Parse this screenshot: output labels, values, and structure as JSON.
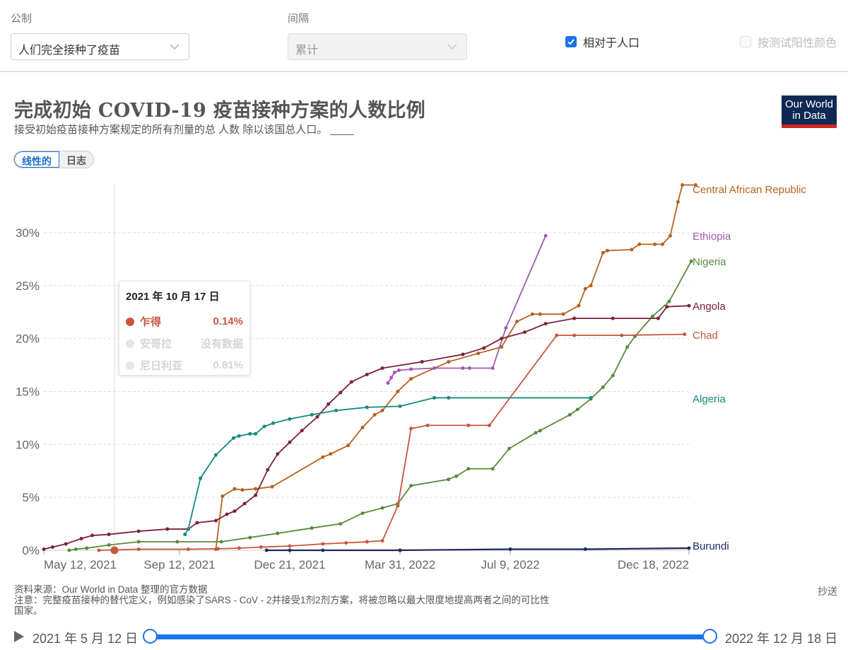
{
  "controls": {
    "metric_label": "公制",
    "metric_value": "人们完全接种了疫苗",
    "interval_label": "间隔",
    "interval_value": "累计",
    "relative_to_population_label": "相对于人口",
    "relative_to_population_checked": true,
    "color_by_test_positivity_label": "按测试阳性颜色",
    "color_by_test_positivity_checked": false
  },
  "header": {
    "title": "完成初始 COVID-19 疫苗接种方案的人数比例",
    "subtitle": "接受初始疫苗接种方案规定的所有剂量的总 人数 除以该国总人口。 ____",
    "logo_line1": "Our World",
    "logo_line2": "in Data"
  },
  "scale_toggle": {
    "linear": "线性的",
    "log": "日志",
    "active": "linear"
  },
  "tooltip": {
    "date": "2021 年 10 月 17 日",
    "rows": [
      {
        "name": "乍得",
        "value": "0.14%",
        "color": "#c8553d",
        "active": true
      },
      {
        "name": "安哥拉",
        "value": "没有数据",
        "color": "#e6e6e6",
        "active": false
      },
      {
        "name": "尼日利亚",
        "value": "0.81%",
        "color": "#e6e6e6",
        "active": false
      }
    ]
  },
  "footer": {
    "source": "资料来源：Our World in Data 整理的官方数据",
    "note_line1": "注意：完整疫苗接种的替代定义，例如感染了SARS - CoV - 2并接受1剂2剂方案，将被忽略以最大限度地提高两者之间的可比性",
    "note_line2": "国家。",
    "share": "抄送"
  },
  "timeline": {
    "start": "2021 年 5 月 12 日",
    "end": "2022 年 12 月 18 日"
  },
  "chart_data": {
    "type": "line",
    "title": "完成初始 COVID-19 疫苗接种方案的人数比例",
    "xlabel": "",
    "ylabel": "",
    "x_tick_labels": [
      "May 12, 2021",
      "Sep 12, 2021",
      "Dec 21, 2021",
      "Mar 31, 2022",
      "Jul 9, 2022",
      "Dec 18, 2022"
    ],
    "y_tick_labels": [
      "0%",
      "5%",
      "10%",
      "15%",
      "20%",
      "25%",
      "30%"
    ],
    "ylim": [
      0,
      35
    ],
    "grid": "horizontal dashed",
    "legend_position": "right (inline labels)",
    "hover_date": "2021-10-17",
    "series": [
      {
        "name": "Central African Republic",
        "color": "#b5621f",
        "points": [
          [
            "2021-10-15",
            0.1
          ],
          [
            "2021-10-21",
            5.1
          ],
          [
            "2021-11-01",
            5.8
          ],
          [
            "2021-11-08",
            5.7
          ],
          [
            "2021-11-20",
            5.8
          ],
          [
            "2021-12-05",
            6.0
          ],
          [
            "2022-01-20",
            8.8
          ],
          [
            "2022-01-27",
            9.1
          ],
          [
            "2022-02-12",
            9.9
          ],
          [
            "2022-02-25",
            11.6
          ],
          [
            "2022-03-08",
            12.8
          ],
          [
            "2022-03-15",
            13.2
          ],
          [
            "2022-03-29",
            15.0
          ],
          [
            "2022-04-10",
            16.2
          ],
          [
            "2022-05-14",
            17.8
          ],
          [
            "2022-06-10",
            18.6
          ],
          [
            "2022-07-01",
            19.2
          ],
          [
            "2022-07-15",
            21.6
          ],
          [
            "2022-07-29",
            22.3
          ],
          [
            "2022-08-05",
            22.3
          ],
          [
            "2022-08-26",
            22.3
          ],
          [
            "2022-09-09",
            23.1
          ],
          [
            "2022-09-15",
            24.7
          ],
          [
            "2022-09-20",
            25.0
          ],
          [
            "2022-10-01",
            28.1
          ],
          [
            "2022-10-05",
            28.3
          ],
          [
            "2022-10-27",
            28.4
          ],
          [
            "2022-11-03",
            28.9
          ],
          [
            "2022-11-17",
            28.9
          ],
          [
            "2022-11-24",
            28.9
          ],
          [
            "2022-12-01",
            29.7
          ],
          [
            "2022-12-08",
            32.9
          ],
          [
            "2022-12-12",
            34.5
          ],
          [
            "2022-12-24",
            34.5
          ]
        ]
      },
      {
        "name": "Ethiopia",
        "color": "#a05aad",
        "points": [
          [
            "2022-03-20",
            15.8
          ],
          [
            "2022-03-23",
            16.3
          ],
          [
            "2022-03-26",
            16.8
          ],
          [
            "2022-03-30",
            17.0
          ],
          [
            "2022-04-10",
            17.1
          ],
          [
            "2022-05-01",
            17.2
          ],
          [
            "2022-05-27",
            17.2
          ],
          [
            "2022-06-02",
            17.2
          ],
          [
            "2022-06-23",
            17.2
          ],
          [
            "2022-07-05",
            21.0
          ],
          [
            "2022-08-10",
            29.7
          ]
        ]
      },
      {
        "name": "Nigeria",
        "color": "#5a8a3c",
        "points": [
          [
            "2021-06-04",
            0.0
          ],
          [
            "2021-06-10",
            0.1
          ],
          [
            "2021-06-20",
            0.2
          ],
          [
            "2021-07-10",
            0.5
          ],
          [
            "2021-08-06",
            0.8
          ],
          [
            "2021-09-10",
            0.8
          ],
          [
            "2021-10-20",
            0.8
          ],
          [
            "2021-11-15",
            1.2
          ],
          [
            "2021-12-10",
            1.6
          ],
          [
            "2022-01-10",
            2.1
          ],
          [
            "2022-02-05",
            2.5
          ],
          [
            "2022-02-25",
            3.5
          ],
          [
            "2022-03-15",
            4.0
          ],
          [
            "2022-03-29",
            4.4
          ],
          [
            "2022-04-10",
            6.1
          ],
          [
            "2022-05-14",
            6.7
          ],
          [
            "2022-05-21",
            7.0
          ],
          [
            "2022-06-01",
            7.7
          ],
          [
            "2022-06-23",
            7.7
          ],
          [
            "2022-07-08",
            9.6
          ],
          [
            "2022-08-01",
            11.1
          ],
          [
            "2022-08-05",
            11.3
          ],
          [
            "2022-09-01",
            12.8
          ],
          [
            "2022-09-08",
            13.3
          ],
          [
            "2022-09-20",
            14.3
          ],
          [
            "2022-10-01",
            15.4
          ],
          [
            "2022-10-10",
            16.5
          ],
          [
            "2022-10-23",
            19.2
          ],
          [
            "2022-10-30",
            20.2
          ],
          [
            "2022-11-15",
            22.1
          ],
          [
            "2022-11-30",
            23.5
          ],
          [
            "2022-12-20",
            27.3
          ]
        ]
      },
      {
        "name": "Angola",
        "color": "#7c2238",
        "points": [
          [
            "2021-05-12",
            0.1
          ],
          [
            "2021-05-20",
            0.3
          ],
          [
            "2021-06-01",
            0.6
          ],
          [
            "2021-06-15",
            1.1
          ],
          [
            "2021-06-25",
            1.4
          ],
          [
            "2021-07-10",
            1.5
          ],
          [
            "2021-08-06",
            1.8
          ],
          [
            "2021-09-01",
            2.0
          ],
          [
            "2021-09-20",
            2.0
          ],
          [
            "2021-09-28",
            2.6
          ],
          [
            "2021-10-15",
            2.8
          ],
          [
            "2021-10-25",
            3.4
          ],
          [
            "2021-11-01",
            3.7
          ],
          [
            "2021-11-10",
            4.4
          ],
          [
            "2021-11-20",
            5.2
          ],
          [
            "2021-12-01",
            7.6
          ],
          [
            "2021-12-10",
            9.1
          ],
          [
            "2021-12-21",
            10.2
          ],
          [
            "2022-01-01",
            11.3
          ],
          [
            "2022-01-15",
            12.6
          ],
          [
            "2022-01-25",
            13.8
          ],
          [
            "2022-02-05",
            14.9
          ],
          [
            "2022-02-15",
            15.9
          ],
          [
            "2022-03-01",
            16.6
          ],
          [
            "2022-03-15",
            17.2
          ],
          [
            "2022-04-20",
            17.8
          ],
          [
            "2022-05-27",
            18.5
          ],
          [
            "2022-06-15",
            19.1
          ],
          [
            "2022-07-01",
            20.0
          ],
          [
            "2022-07-22",
            20.6
          ],
          [
            "2022-08-10",
            21.4
          ],
          [
            "2022-09-05",
            21.9
          ],
          [
            "2022-10-10",
            21.9
          ],
          [
            "2022-11-20",
            21.9
          ],
          [
            "2022-11-28",
            23.0
          ],
          [
            "2022-12-18",
            23.1
          ]
        ]
      },
      {
        "name": "Chad",
        "color": "#c8553d",
        "points": [
          [
            "2021-07-01",
            0.0
          ],
          [
            "2021-08-06",
            0.1
          ],
          [
            "2021-09-20",
            0.1
          ],
          [
            "2021-10-17",
            0.14
          ],
          [
            "2021-11-05",
            0.2
          ],
          [
            "2021-11-25",
            0.3
          ],
          [
            "2021-12-21",
            0.4
          ],
          [
            "2022-01-20",
            0.6
          ],
          [
            "2022-02-10",
            0.7
          ],
          [
            "2022-03-01",
            0.8
          ],
          [
            "2022-03-15",
            0.9
          ],
          [
            "2022-03-29",
            4.2
          ],
          [
            "2022-04-10",
            11.5
          ],
          [
            "2022-04-25",
            11.8
          ],
          [
            "2022-06-01",
            11.8
          ],
          [
            "2022-06-20",
            11.8
          ],
          [
            "2022-08-20",
            20.3
          ],
          [
            "2022-09-05",
            20.3
          ],
          [
            "2022-10-18",
            20.3
          ],
          [
            "2022-12-14",
            20.4
          ]
        ]
      },
      {
        "name": "Algeria",
        "color": "#158a7e",
        "points": [
          [
            "2021-09-17",
            1.5
          ],
          [
            "2021-09-20",
            2.0
          ],
          [
            "2021-10-01",
            6.8
          ],
          [
            "2021-10-15",
            9.0
          ],
          [
            "2021-10-31",
            10.6
          ],
          [
            "2021-11-05",
            10.8
          ],
          [
            "2021-11-15",
            11.0
          ],
          [
            "2021-11-20",
            11.0
          ],
          [
            "2021-11-28",
            11.7
          ],
          [
            "2021-12-06",
            12.0
          ],
          [
            "2021-12-21",
            12.4
          ],
          [
            "2022-01-10",
            12.8
          ],
          [
            "2022-02-01",
            13.2
          ],
          [
            "2022-03-01",
            13.5
          ],
          [
            "2022-03-31",
            13.6
          ],
          [
            "2022-05-01",
            14.4
          ],
          [
            "2022-05-14",
            14.4
          ],
          [
            "2022-09-20",
            14.4
          ]
        ]
      },
      {
        "name": "Burundi",
        "color": "#1b2a5a",
        "points": [
          [
            "2021-11-30",
            0.0
          ],
          [
            "2021-12-21",
            0.0
          ],
          [
            "2022-01-20",
            0.0
          ],
          [
            "2022-03-31",
            0.0
          ],
          [
            "2022-07-09",
            0.1
          ],
          [
            "2022-09-15",
            0.1
          ],
          [
            "2022-12-18",
            0.2
          ]
        ]
      }
    ]
  }
}
